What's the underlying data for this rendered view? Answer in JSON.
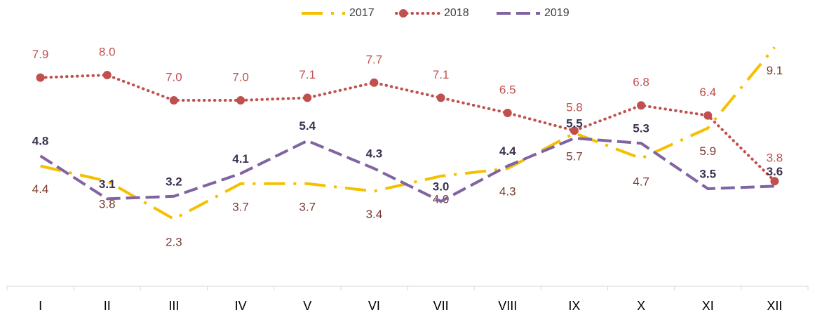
{
  "chart_data": {
    "type": "line",
    "categories": [
      "I",
      "II",
      "III",
      "IV",
      "V",
      "VI",
      "VII",
      "VIII",
      "IX",
      "X",
      "XI",
      "XII"
    ],
    "series": [
      {
        "name": "2017",
        "color": "#f5c000",
        "label_color": "#7b3a30",
        "values": [
          4.4,
          3.8,
          2.3,
          3.7,
          3.7,
          3.4,
          4.0,
          4.3,
          5.7,
          4.7,
          5.9,
          9.1
        ],
        "value_labels": [
          "4.4",
          "3.8",
          "2.3",
          "3.7",
          "3.7",
          "3.4",
          "4.0",
          "4.3",
          "5.7",
          "4.7",
          "5.9",
          "9.1"
        ]
      },
      {
        "name": "2018",
        "color": "#c0504d",
        "label_color": "#c0504d",
        "values": [
          7.9,
          8.0,
          7.0,
          7.0,
          7.1,
          7.7,
          7.1,
          6.5,
          5.8,
          6.8,
          6.4,
          3.8
        ],
        "value_labels": [
          "7.9",
          "8.0",
          "7.0",
          "7.0",
          "7.1",
          "7.7",
          "7.1",
          "6.5",
          "5.8",
          "6.8",
          "6.4",
          "3.8"
        ]
      },
      {
        "name": "2019",
        "color": "#8064a2",
        "label_color": "#3b3150",
        "values": [
          4.8,
          3.1,
          3.2,
          4.1,
          5.4,
          4.3,
          3.0,
          4.4,
          5.5,
          5.3,
          3.5,
          3.6
        ],
        "value_labels": [
          "4.8",
          "3.1",
          "3.2",
          "4.1",
          "5.4",
          "4.3",
          "3.0",
          "4.4",
          "5.5",
          "5.3",
          "3.5",
          "3.6"
        ]
      }
    ],
    "ylim": [
      0,
      10
    ],
    "legend": "top"
  }
}
